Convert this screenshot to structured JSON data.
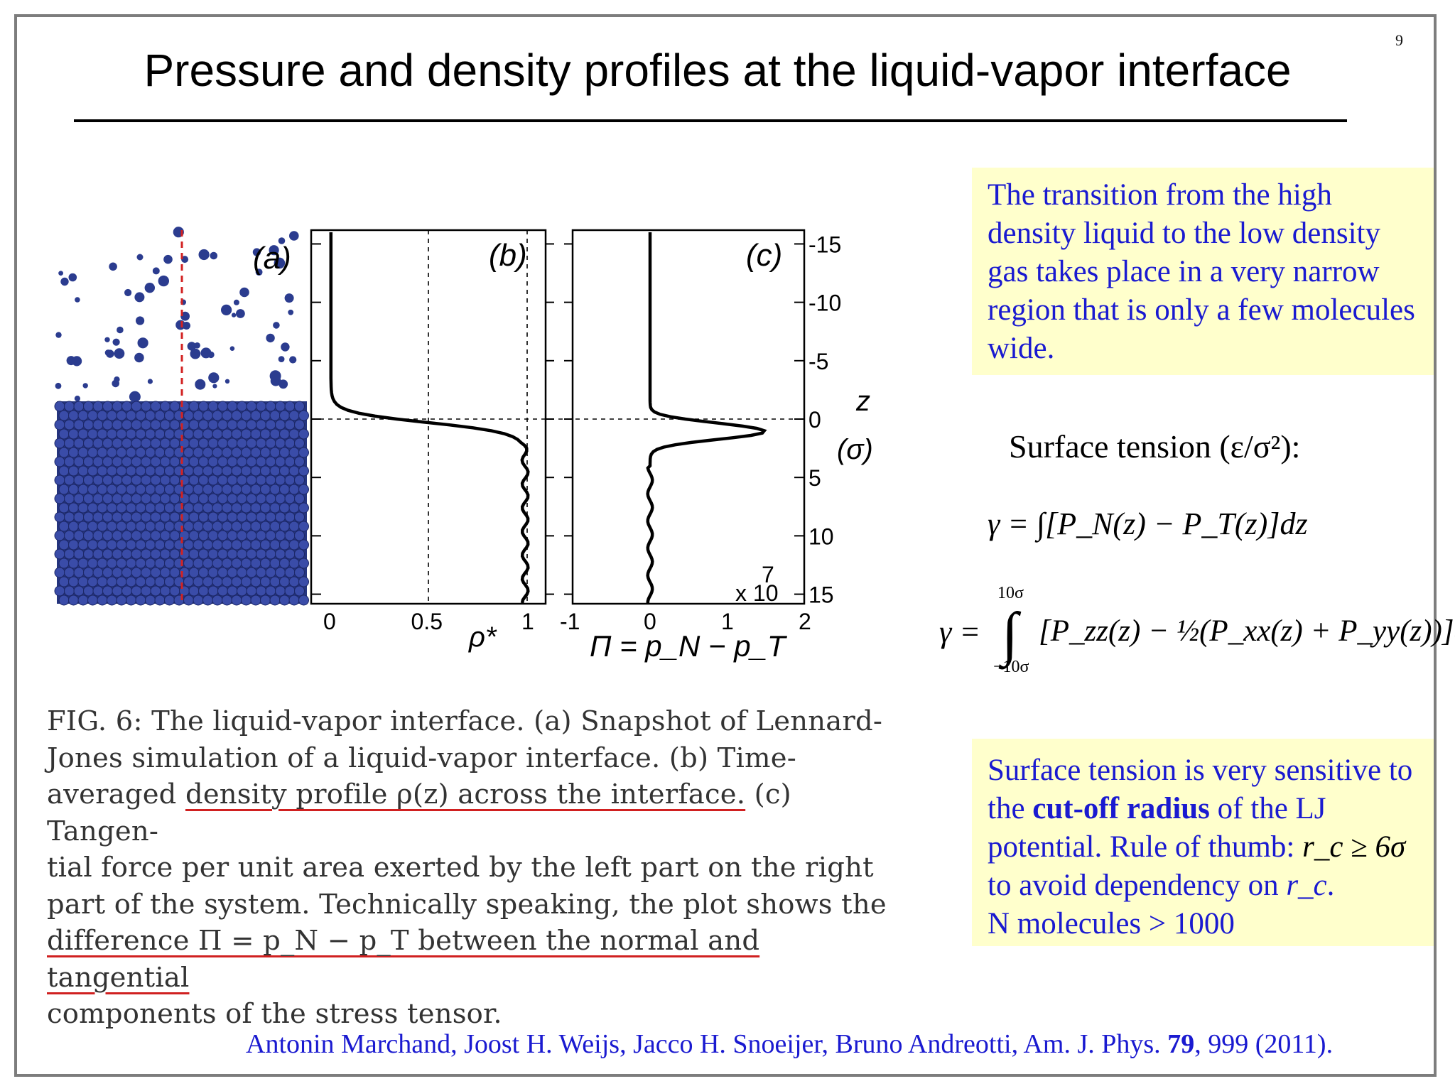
{
  "slide": {
    "page_number": "9",
    "title": "Pressure and density profiles at the liquid-vapor interface"
  },
  "figure": {
    "panel_a_label": "(a)",
    "panel_b_label": "(b)",
    "panel_c_label": "(c)",
    "z_ticks": [
      "-15",
      "-10",
      "-5",
      "0",
      "5",
      "10",
      "15"
    ],
    "z_axis_label": "z",
    "z_axis_unit": "(σ)",
    "b_x_ticks": [
      "0",
      "0.5",
      "1"
    ],
    "b_x_label": "ρ*",
    "c_x_ticks": [
      "-1",
      "0",
      "1",
      "2"
    ],
    "c_x_label": "Π = p_N − p_T",
    "c_multiplier": "x 10",
    "c_exponent": "7",
    "colors": {
      "particles": "#2b3c8f",
      "marker_line": "#d22222",
      "curves": "#000000"
    }
  },
  "caption": {
    "line1": "FIG. 6: The liquid-vapor interface. (a) Snapshot of Lennard-",
    "line2": "Jones simulation of a liquid-vapor interface. (b) Time-",
    "line3_pre": "averaged ",
    "line3_u": "density profile ρ(z) across the interface.",
    "line3_post": " (c) Tangen-",
    "line4": "tial force per unit area exerted by the left part on the right",
    "line5": "part of the system. Technically speaking, the plot shows the",
    "line6_u": "difference Π = p_N − p_T between the normal and tangential",
    "line7": "components of the stress tensor."
  },
  "info_box_1": {
    "text": "The transition from the high density liquid to the low density gas takes place in a very narrow region that is only a few molecules wide."
  },
  "surface_tension": {
    "heading": "Surface tension (ε/σ²):",
    "eq1": "γ = ∫[P_N(z) − P_T(z)]dz",
    "eq2_upper": "10σ",
    "eq2_lower": "−10σ",
    "eq2_body": "[P_zz(z) − ½(P_xx(z) + P_yy(z))]dz"
  },
  "info_box_2": {
    "part1": "Surface tension is very sensitive to the ",
    "bold": "cut-off radius",
    "part2": " of the LJ potential. Rule of thumb: ",
    "rule": "r_c ≥ 6σ",
    "part3": " to avoid dependency on ",
    "rc": "r_c",
    "part4": ".",
    "line_last": "N molecules > 1000"
  },
  "citation": {
    "authors": "Antonin Marchand, Joost H. Weijs, Jacco H. Snoeijer, Bruno Andreotti, Am. J. Phys. ",
    "volume": "79",
    "rest": ", 999 (2011)."
  }
}
